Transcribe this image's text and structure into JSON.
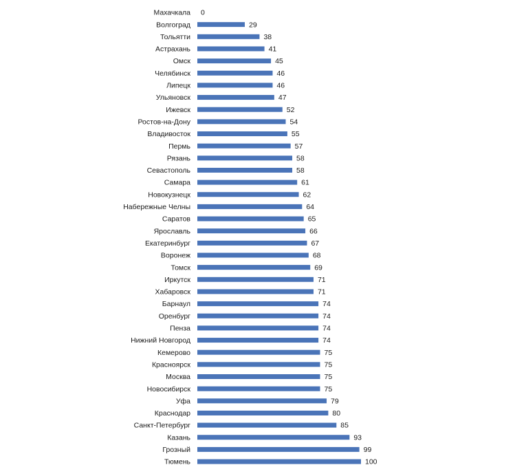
{
  "chart_data": {
    "type": "bar",
    "orientation": "horizontal",
    "categories": [
      "Махачкала",
      "Волгоград",
      "Тольятти",
      "Астрахань",
      "Омск",
      "Челябинск",
      "Липецк",
      "Ульяновск",
      "Ижевск",
      "Ростов-на-Дону",
      "Владивосток",
      "Пермь",
      "Рязань",
      "Севастополь",
      "Самара",
      "Новокузнецк",
      "Набережные Челны",
      "Саратов",
      "Ярославль",
      "Екатеринбург",
      "Воронеж",
      "Томск",
      "Иркутск",
      "Хабаровск",
      "Барнаул",
      "Оренбург",
      "Пенза",
      "Нижний Новгород",
      "Кемерово",
      "Красноярск",
      "Москва",
      "Новосибирск",
      "Уфа",
      "Краснодар",
      "Санкт-Петербург",
      "Казань",
      "Грозный",
      "Тюмень"
    ],
    "values": [
      0,
      29,
      38,
      41,
      45,
      46,
      46,
      47,
      52,
      54,
      55,
      57,
      58,
      58,
      61,
      62,
      64,
      65,
      66,
      67,
      68,
      69,
      71,
      71,
      74,
      74,
      74,
      74,
      75,
      75,
      75,
      75,
      79,
      80,
      85,
      93,
      99,
      100
    ],
    "xlim": [
      0,
      100
    ],
    "grid": false,
    "legend": "none",
    "bar_color": "#4a74b8",
    "title": "",
    "xlabel": "",
    "ylabel": ""
  }
}
